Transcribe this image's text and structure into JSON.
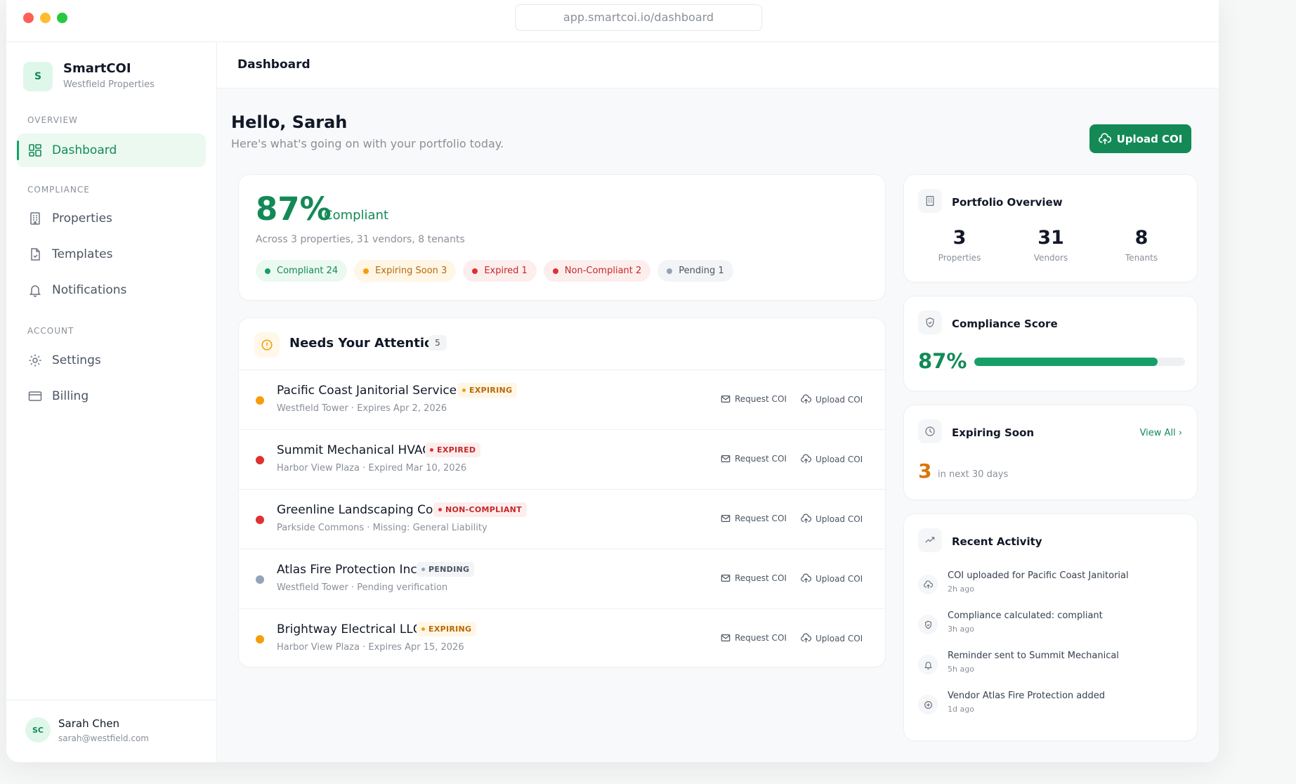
{
  "browser": {
    "url": "app.smartcoi.io/dashboard"
  },
  "sidebar": {
    "logo_letter": "S",
    "app_name": "SmartCOI",
    "org_name": "Westfield Properties",
    "sections": {
      "overview": "OVERVIEW",
      "compliance": "COMPLIANCE",
      "account": "ACCOUNT"
    },
    "items": {
      "dashboard": "Dashboard",
      "properties": "Properties",
      "templates": "Templates",
      "notifications": "Notifications",
      "settings": "Settings",
      "billing": "Billing"
    },
    "user": {
      "initials": "SC",
      "name": "Sarah Chen",
      "email": "sarah@westfield.com"
    }
  },
  "topbar": {
    "title": "Dashboard"
  },
  "header": {
    "greeting": "Hello, Sarah",
    "subtitle": "Here's what's going on with your portfolio today.",
    "upload_button": "Upload COI"
  },
  "compliance_summary": {
    "percent": "87%",
    "label": "Compliant",
    "subtitle": "Across 3 properties, 31 vendors, 8 tenants",
    "pills": {
      "compliant": "Compliant 24",
      "expiring": "Expiring Soon 3",
      "expired": "Expired 1",
      "noncompliant": "Non-Compliant 2",
      "pending": "Pending 1"
    }
  },
  "attention": {
    "title": "Needs Your Attention",
    "count": "5",
    "request_label": "Request COI",
    "upload_label": "Upload COI",
    "rows": [
      {
        "name": "Pacific Coast Janitorial Services",
        "status": "EXPIRING",
        "detail": "Westfield Tower · Expires Apr 2, 2026"
      },
      {
        "name": "Summit Mechanical HVAC",
        "status": "EXPIRED",
        "detail": "Harbor View Plaza · Expired Mar 10, 2026"
      },
      {
        "name": "Greenline Landscaping Co.",
        "status": "NON-COMPLIANT",
        "detail": "Parkside Commons · Missing: General Liability"
      },
      {
        "name": "Atlas Fire Protection Inc.",
        "status": "PENDING",
        "detail": "Westfield Tower · Pending verification"
      },
      {
        "name": "Brightway Electrical LLC",
        "status": "EXPIRING",
        "detail": "Harbor View Plaza · Expires Apr 15, 2026"
      }
    ]
  },
  "portfolio": {
    "title": "Portfolio Overview",
    "stats": [
      {
        "value": "3",
        "label": "Properties"
      },
      {
        "value": "31",
        "label": "Vendors"
      },
      {
        "value": "8",
        "label": "Tenants"
      }
    ]
  },
  "score": {
    "title": "Compliance Score",
    "value": "87%",
    "fraction": 0.87
  },
  "expiring": {
    "title": "Expiring Soon",
    "view_all": "View All ›",
    "count": "3",
    "window": "in next 30 days"
  },
  "activity": {
    "title": "Recent Activity",
    "items": [
      {
        "text": "COI uploaded for Pacific Coast Janitorial",
        "time": "2h ago",
        "icon": "upload-icon"
      },
      {
        "text": "Compliance calculated: compliant",
        "time": "3h ago",
        "icon": "shield-icon"
      },
      {
        "text": "Reminder sent to Summit Mechanical",
        "time": "5h ago",
        "icon": "bell-icon"
      },
      {
        "text": "Vendor Atlas Fire Protection added",
        "time": "1d ago",
        "icon": "plus-circle-icon"
      }
    ]
  },
  "colors": {
    "brand_green": "#138a56",
    "amber": "#f59e0b",
    "red": "#e03131",
    "gray": "#94a3b8"
  }
}
